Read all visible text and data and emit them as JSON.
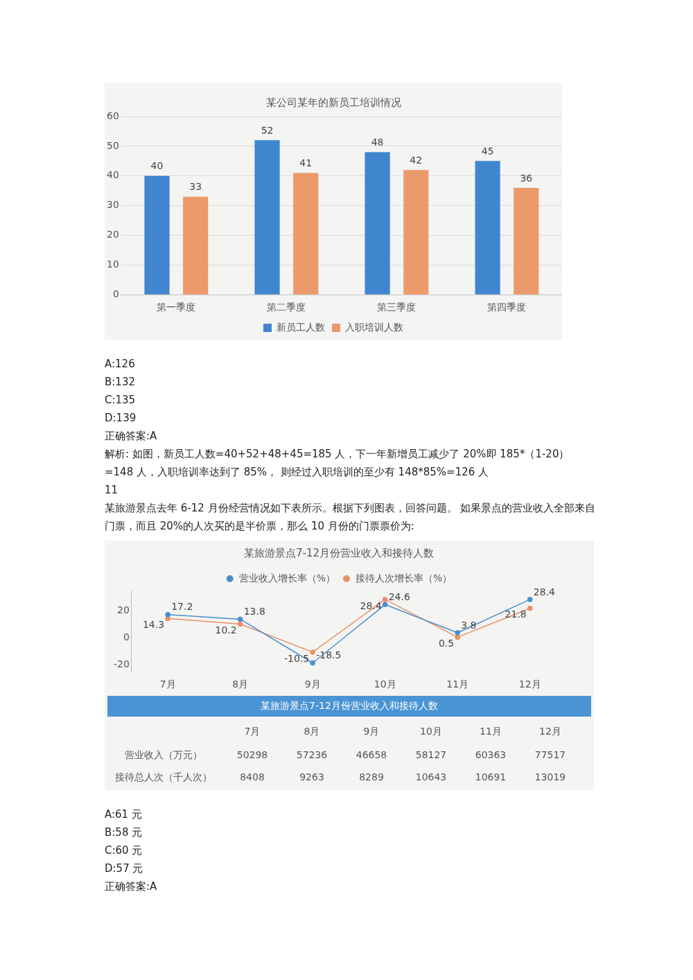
{
  "chart_data": [
    {
      "type": "bar",
      "title": "某公司某年的新员工培训情况",
      "categories": [
        "第一季度",
        "第二季度",
        "第三季度",
        "第四季度"
      ],
      "series": [
        {
          "name": "新员工人数",
          "color": "#3f86cf",
          "values": [
            40,
            52,
            48,
            45
          ]
        },
        {
          "name": "入职培训人数",
          "color": "#ec9a6c",
          "values": [
            33,
            41,
            42,
            36
          ]
        }
      ],
      "ylim": [
        0,
        60
      ],
      "yticks": [
        0,
        10,
        20,
        30,
        40,
        50,
        60
      ],
      "grid": "y",
      "legend": "bottom",
      "data_labels": true,
      "annotations": [
        "A:126",
        "B:132",
        "C:135",
        "D:139",
        "正确答案:A",
        "解析: 如图，新员工人数=40+52+48+45=185 人，下一年新增员工减少了 20%即 185*（1-20）=148 人，入职培训率达到了 85%，  则经过入职培训的至少有 148*85%=126 人",
        "11",
        "某旅游景点去年 6-12 月份经营情况如下表所示。根据下列图表，回答问题。 如果景点的营业收入全部来自门票，而且 20%的人次买的是半价票，那么 10 月份的门票票价为:"
      ]
    },
    {
      "type": "line",
      "title": "某旅游景点7-12月份营业收入和接待人数",
      "categories": [
        "7月",
        "8月",
        "9月",
        "10月",
        "11月",
        "12月"
      ],
      "series": [
        {
          "name": "营业收入增长率（%）",
          "color": "#4a8fd0",
          "values": [
            17.2,
            13.8,
            -18.5,
            24.6,
            3.8,
            28.4
          ]
        },
        {
          "name": "接待人次增长率（%）",
          "color": "#e8906a",
          "values": [
            14.3,
            10.2,
            -10.5,
            28.4,
            0.5,
            21.8
          ]
        }
      ],
      "ylim": [
        -25,
        35
      ],
      "yticks": [
        -20,
        0,
        20
      ],
      "grid": false,
      "legend": "top",
      "marker": "circle",
      "line_style": "solid",
      "data_labels": true
    },
    {
      "type": "heatmap",
      "title": "某旅游景点7-12月份营业收入和接待人数",
      "categories": [
        "7月",
        "8月",
        "9月",
        "10月",
        "11月",
        "12月"
      ],
      "y_categories": [
        "营业收入（万元）",
        "接待总人次（千人次）"
      ],
      "cells": [
        [
          50298,
          57236,
          46658,
          58127,
          60363,
          77517
        ],
        [
          8408,
          9263,
          8289,
          10643,
          10691,
          13019
        ]
      ],
      "data_labels": true,
      "annotations": [
        "A:61 元",
        "B:58 元",
        "C:60 元",
        "D:57 元",
        "正确答案:A"
      ]
    }
  ]
}
